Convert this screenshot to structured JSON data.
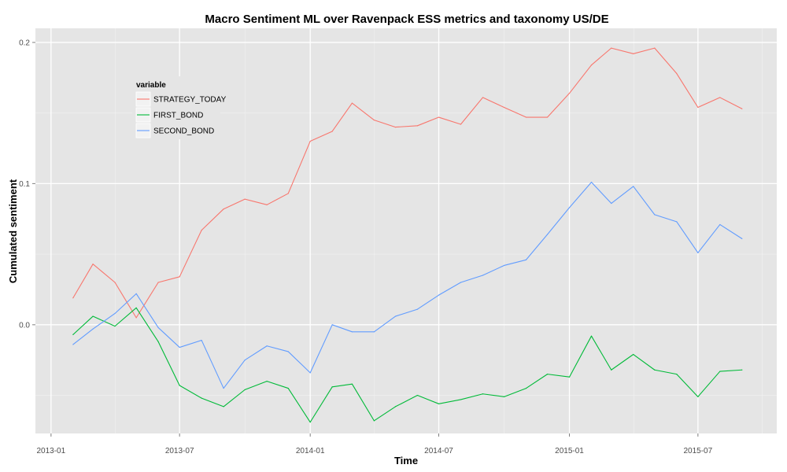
{
  "chart_data": {
    "type": "line",
    "title": "Macro Sentiment ML over Ravenpack ESS metrics and taxonomy US/DE",
    "xlabel": "Time",
    "ylabel": "Cumulated sentiment",
    "x": [
      "2013-02",
      "2013-03",
      "2013-04",
      "2013-05",
      "2013-06",
      "2013-07",
      "2013-08",
      "2013-09",
      "2013-10",
      "2013-11",
      "2013-12",
      "2014-01",
      "2014-02",
      "2014-03",
      "2014-04",
      "2014-05",
      "2014-06",
      "2014-07",
      "2014-08",
      "2014-09",
      "2014-10",
      "2014-11",
      "2014-12",
      "2015-01",
      "2015-02",
      "2015-03",
      "2015-04",
      "2015-05",
      "2015-06",
      "2015-07",
      "2015-08",
      "2015-09"
    ],
    "x_ticks": [
      "2013-01",
      "2013-07",
      "2014-01",
      "2014-07",
      "2015-01",
      "2015-07"
    ],
    "xlim": [
      "2012-12-10",
      "2015-10-20"
    ],
    "y_ticks": [
      0.0,
      0.1,
      0.2
    ],
    "y_tick_labels": [
      "0.0",
      "0.1",
      "0.2"
    ],
    "ylim": [
      -0.077,
      0.21
    ],
    "grid": true,
    "legend": {
      "title": "variable",
      "placement": "top-left"
    },
    "series": [
      {
        "name": "STRATEGY_TODAY",
        "color": "#F8766D",
        "values": [
          0.019,
          0.043,
          0.03,
          0.005,
          0.03,
          0.034,
          0.067,
          0.082,
          0.089,
          0.085,
          0.093,
          0.13,
          0.137,
          0.157,
          0.145,
          0.14,
          0.141,
          0.147,
          0.142,
          0.161,
          0.154,
          0.147,
          0.147,
          0.164,
          0.184,
          0.196,
          0.192,
          0.196,
          0.178,
          0.154,
          0.161,
          0.153
        ]
      },
      {
        "name": "FIRST_BOND",
        "color": "#00BA38",
        "values": [
          -0.007,
          0.006,
          -0.001,
          0.012,
          -0.012,
          -0.043,
          -0.052,
          -0.058,
          -0.046,
          -0.04,
          -0.045,
          -0.069,
          -0.044,
          -0.042,
          -0.068,
          -0.058,
          -0.05,
          -0.056,
          -0.053,
          -0.049,
          -0.051,
          -0.045,
          -0.035,
          -0.037,
          -0.008,
          -0.032,
          -0.021,
          -0.032,
          -0.035,
          -0.051,
          -0.033,
          -0.032
        ]
      },
      {
        "name": "SECOND_BOND",
        "color": "#619CFF",
        "values": [
          -0.014,
          -0.003,
          0.008,
          0.022,
          -0.002,
          -0.016,
          -0.011,
          -0.045,
          -0.025,
          -0.015,
          -0.019,
          -0.034,
          0.0,
          -0.005,
          -0.005,
          0.006,
          0.011,
          0.021,
          0.03,
          0.035,
          0.042,
          0.046,
          0.064,
          0.083,
          0.101,
          0.086,
          0.098,
          0.078,
          0.073,
          0.051,
          0.071,
          0.061
        ]
      }
    ]
  }
}
